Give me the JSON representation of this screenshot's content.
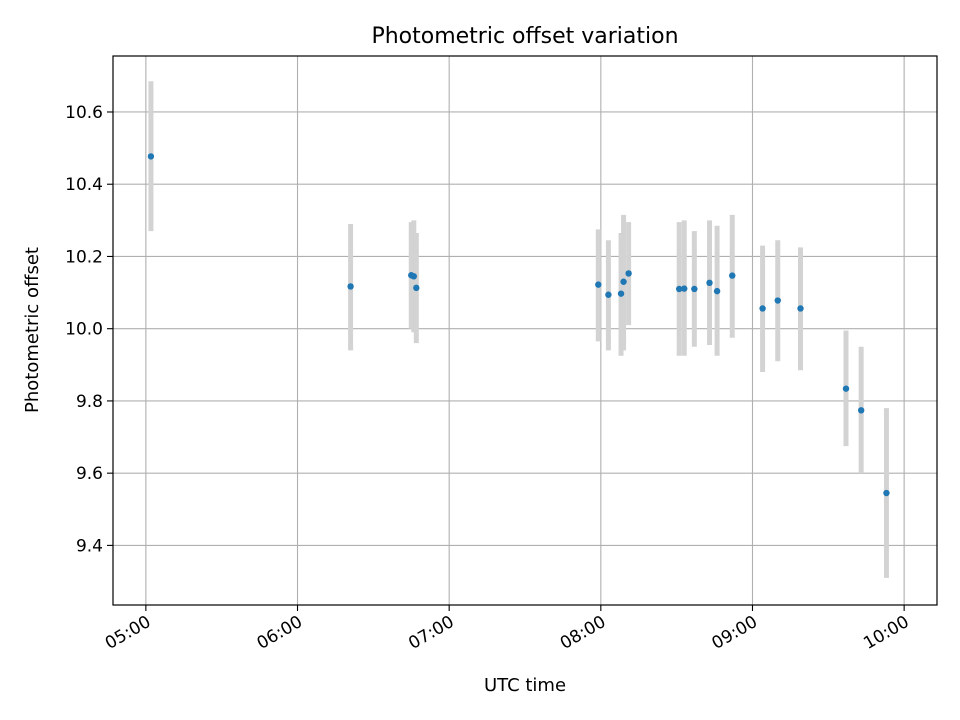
{
  "chart_data": {
    "type": "scatter",
    "title": "Photometric offset variation",
    "xlabel": "UTC time",
    "ylabel": "Photometric offset",
    "xlim": [
      "04:47",
      "10:13"
    ],
    "ylim": [
      9.235,
      10.755
    ],
    "grid": true,
    "x_ticks": [
      "05:00",
      "06:00",
      "07:00",
      "08:00",
      "09:00",
      "10:00"
    ],
    "y_ticks": [
      9.4,
      9.6,
      9.8,
      10.0,
      10.2,
      10.4,
      10.6
    ],
    "y_tick_labels": [
      "9.4",
      "9.6",
      "9.8",
      "10.0",
      "10.2",
      "10.4",
      "10.6"
    ],
    "colors": {
      "point": "#1f77b4",
      "errorbar": "#d3d3d3",
      "grid": "#b0b0b0"
    },
    "series": [
      {
        "points": [
          {
            "x": "05:02",
            "y": 10.477,
            "lo": 10.27,
            "hi": 10.685
          },
          {
            "x": "06:21",
            "y": 10.117,
            "lo": 9.94,
            "hi": 10.29
          },
          {
            "x": "06:45",
            "y": 10.148,
            "lo": 10.0,
            "hi": 10.295
          },
          {
            "x": "06:46",
            "y": 10.145,
            "lo": 9.99,
            "hi": 10.3
          },
          {
            "x": "06:47",
            "y": 10.113,
            "lo": 9.96,
            "hi": 10.265
          },
          {
            "x": "07:59",
            "y": 10.122,
            "lo": 9.965,
            "hi": 10.275
          },
          {
            "x": "08:03",
            "y": 10.094,
            "lo": 9.94,
            "hi": 10.245
          },
          {
            "x": "08:08",
            "y": 10.097,
            "lo": 9.925,
            "hi": 10.265
          },
          {
            "x": "08:09",
            "y": 10.13,
            "lo": 9.94,
            "hi": 10.315
          },
          {
            "x": "08:11",
            "y": 10.153,
            "lo": 10.01,
            "hi": 10.295
          },
          {
            "x": "08:31",
            "y": 10.11,
            "lo": 9.925,
            "hi": 10.295
          },
          {
            "x": "08:33",
            "y": 10.111,
            "lo": 9.925,
            "hi": 10.3
          },
          {
            "x": "08:37",
            "y": 10.11,
            "lo": 9.95,
            "hi": 10.27
          },
          {
            "x": "08:43",
            "y": 10.127,
            "lo": 9.955,
            "hi": 10.3
          },
          {
            "x": "08:46",
            "y": 10.104,
            "lo": 9.925,
            "hi": 10.285
          },
          {
            "x": "08:52",
            "y": 10.147,
            "lo": 9.975,
            "hi": 10.315
          },
          {
            "x": "09:04",
            "y": 10.056,
            "lo": 9.88,
            "hi": 10.23
          },
          {
            "x": "09:10",
            "y": 10.078,
            "lo": 9.91,
            "hi": 10.245
          },
          {
            "x": "09:19",
            "y": 10.056,
            "lo": 9.885,
            "hi": 10.225
          },
          {
            "x": "09:37",
            "y": 9.834,
            "lo": 9.675,
            "hi": 9.995
          },
          {
            "x": "09:43",
            "y": 9.774,
            "lo": 9.6,
            "hi": 9.95
          },
          {
            "x": "09:53",
            "y": 9.545,
            "lo": 9.31,
            "hi": 9.78
          }
        ]
      }
    ]
  }
}
